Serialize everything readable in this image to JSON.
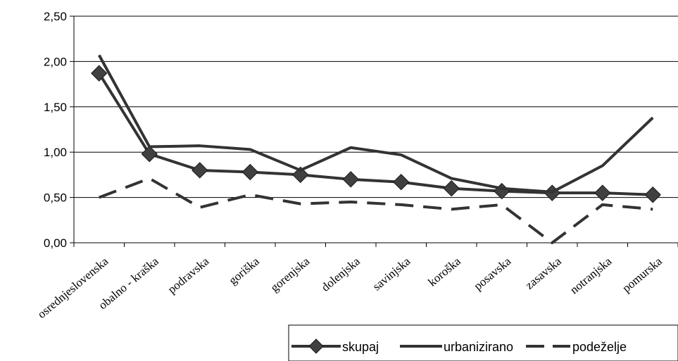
{
  "chart_data": {
    "type": "line",
    "title": "",
    "xlabel": "",
    "ylabel": "",
    "categories": [
      "osrednjeslovenska",
      "obalno - kraška",
      "podravska",
      "goriška",
      "gorenjska",
      "dolenjska",
      "savinjska",
      "koroška",
      "posavska",
      "zasavska",
      "notranjska",
      "pomurska"
    ],
    "ylim": [
      0,
      2.5
    ],
    "yticks": [
      "0,00",
      "0,50",
      "1,00",
      "1,50",
      "2,00",
      "2,50"
    ],
    "grid": true,
    "legend_position": "bottom-right",
    "series": [
      {
        "name": "skupaj",
        "values": [
          1.87,
          0.98,
          0.8,
          0.78,
          0.75,
          0.7,
          0.67,
          0.6,
          0.57,
          0.55,
          0.55,
          0.53
        ],
        "style": "solid",
        "marker": "diamond",
        "color": "#333333"
      },
      {
        "name": "urbanizirano",
        "values": [
          2.07,
          1.06,
          1.07,
          1.03,
          0.8,
          1.05,
          0.97,
          0.71,
          0.6,
          0.56,
          0.85,
          1.38
        ],
        "style": "solid",
        "marker": "none",
        "color": "#333333"
      },
      {
        "name": "podeželje",
        "values": [
          0.5,
          0.71,
          0.39,
          0.53,
          0.43,
          0.45,
          0.42,
          0.37,
          0.42,
          0.0,
          0.42,
          0.37
        ],
        "style": "dashed",
        "marker": "none",
        "color": "#333333"
      }
    ]
  }
}
